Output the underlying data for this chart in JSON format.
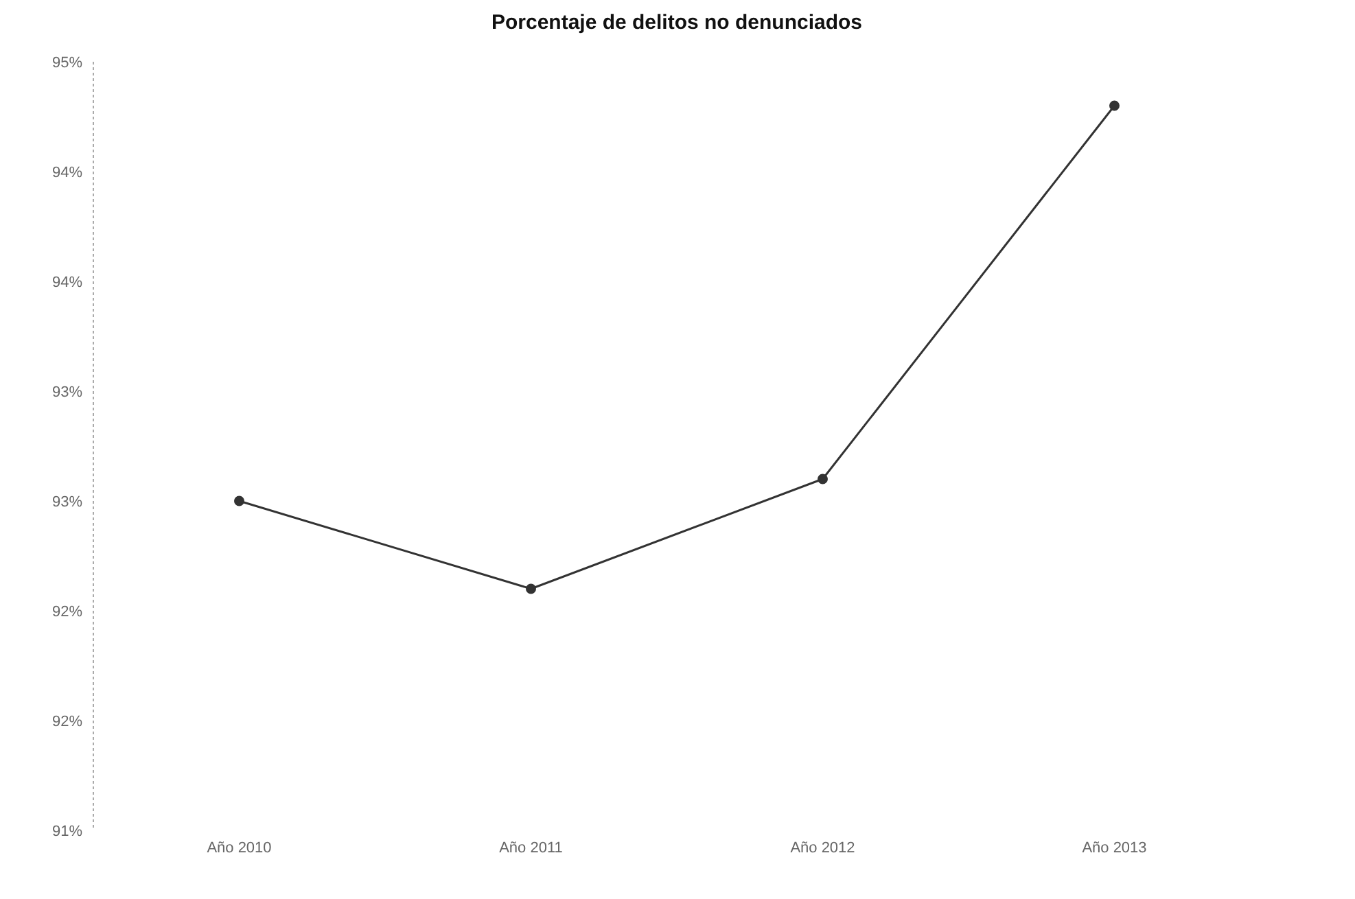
{
  "chart_data": {
    "type": "line",
    "title": "Porcentaje de delitos no denunciados",
    "categories": [
      "Año 2010",
      "Año 2011",
      "Año 2012",
      "Año 2013"
    ],
    "series": [
      {
        "color": "#333333",
        "values": [
          92.5,
          92.1,
          92.6,
          94.3
        ]
      }
    ],
    "ylim": [
      91,
      94.5
    ],
    "yticks": [
      {
        "value": 91,
        "label": "91%"
      },
      {
        "value": 91.5,
        "label": "92%"
      },
      {
        "value": 92,
        "label": "92%"
      },
      {
        "value": 92.5,
        "label": "93%"
      },
      {
        "value": 93,
        "label": "93%"
      },
      {
        "value": 93.5,
        "label": "94%"
      },
      {
        "value": 94,
        "label": "94%"
      },
      {
        "value": 94.5,
        "label": "95%"
      }
    ],
    "grid": false,
    "marker": "circle",
    "line_style": "solid"
  }
}
